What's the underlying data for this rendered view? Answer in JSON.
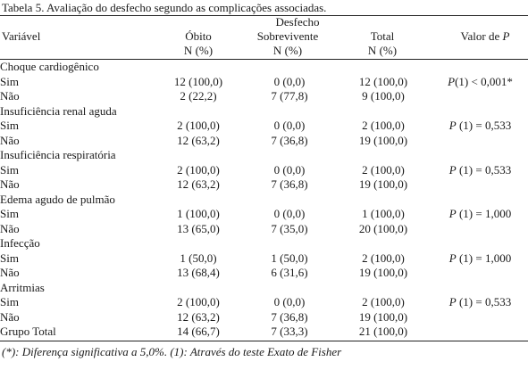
{
  "caption": "Tabela 5.  Avaliação do desfecho segundo as complicações associadas.",
  "header": {
    "group": "Desfecho",
    "variable": "Variável",
    "obito": "Óbito",
    "sobrevivente": "Sobrevivente",
    "total": "Total",
    "pvalue": "Valor de P",
    "unit1": "N (%)",
    "unit2": "N (%)",
    "unit3": "N (%)"
  },
  "rows": [
    {
      "label": "Choque cardiogênico",
      "type": "group",
      "obito": "",
      "sobrevivente": "",
      "total": "",
      "p": ""
    },
    {
      "label": "Sim",
      "type": "data",
      "obito": "12 (100,0)",
      "sobrevivente": "0 (0,0)",
      "total": "12 (100,0)",
      "p": "P(1) < 0,001*"
    },
    {
      "label": "Não",
      "type": "data",
      "obito": "2 (22,2)",
      "sobrevivente": "7 (77,8)",
      "total": "9 (100,0)",
      "p": ""
    },
    {
      "label": "Insuficiência renal aguda",
      "type": "group",
      "obito": "",
      "sobrevivente": "",
      "total": "",
      "p": ""
    },
    {
      "label": "Sim",
      "type": "data",
      "obito": "2 (100,0)",
      "sobrevivente": "0 (0,0)",
      "total": "2 (100,0)",
      "p": "P (1) = 0,533"
    },
    {
      "label": "Não",
      "type": "data",
      "obito": "12 (63,2)",
      "sobrevivente": "7 (36,8)",
      "total": "19 (100,0)",
      "p": ""
    },
    {
      "label": "Insuficiência respiratória",
      "type": "group",
      "obito": "",
      "sobrevivente": "",
      "total": "",
      "p": ""
    },
    {
      "label": "Sim",
      "type": "data",
      "obito": "2 (100,0)",
      "sobrevivente": "0 (0,0)",
      "total": "2 (100,0)",
      "p": "P (1) = 0,533"
    },
    {
      "label": "Não",
      "type": "data",
      "obito": "12 (63,2)",
      "sobrevivente": "7 (36,8)",
      "total": "19 (100,0)",
      "p": ""
    },
    {
      "label": "Edema agudo de pulmão",
      "type": "group",
      "obito": "",
      "sobrevivente": "",
      "total": "",
      "p": ""
    },
    {
      "label": "Sim",
      "type": "data",
      "obito": "1 (100,0)",
      "sobrevivente": "0 (0,0)",
      "total": "1 (100,0)",
      "p": "P (1) = 1,000"
    },
    {
      "label": "Não",
      "type": "data",
      "obito": "13 (65,0)",
      "sobrevivente": "7 (35,0)",
      "total": "20 (100,0)",
      "p": ""
    },
    {
      "label": "Infecção",
      "type": "group",
      "obito": "",
      "sobrevivente": "",
      "total": "",
      "p": ""
    },
    {
      "label": "Sim",
      "type": "data",
      "obito": "1 (50,0)",
      "sobrevivente": "1 (50,0)",
      "total": "2 (100,0)",
      "p": "P (1) = 1,000"
    },
    {
      "label": "Não",
      "type": "data",
      "obito": "13 (68,4)",
      "sobrevivente": "6 (31,6)",
      "total": "19 (100,0)",
      "p": ""
    },
    {
      "label": "Arritmias",
      "type": "group",
      "obito": "",
      "sobrevivente": "",
      "total": "",
      "p": ""
    },
    {
      "label": "Sim",
      "type": "data",
      "obito": "2 (100,0)",
      "sobrevivente": "0 (0,0)",
      "total": "2 (100,0)",
      "p": "P (1) = 0,533"
    },
    {
      "label": "Não",
      "type": "data",
      "obito": "12 (63,2)",
      "sobrevivente": "7 (36,8)",
      "total": "19 (100,0)",
      "p": ""
    },
    {
      "label": "Grupo  Total",
      "type": "data",
      "obito": "14 (66,7)",
      "sobrevivente": "7 (33,3)",
      "total": "21 (100,0)",
      "p": ""
    }
  ],
  "footnote": "(*): Diferença significativa a 5,0%. (1): Através do teste Exato de Fisher"
}
